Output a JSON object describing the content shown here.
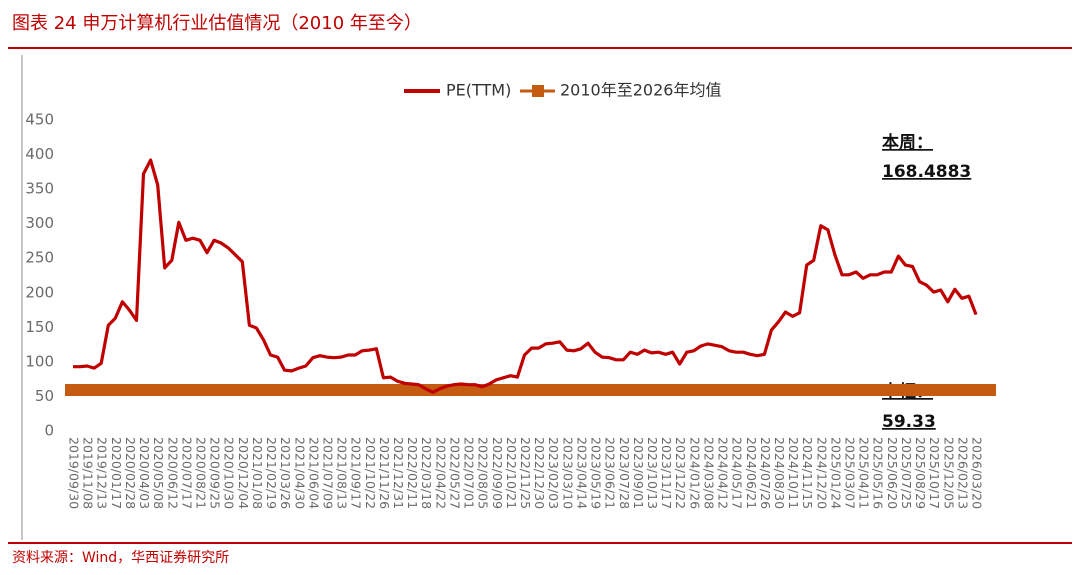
{
  "chart_data": {
    "type": "line",
    "title": "图表 24 申万计算机行业估值情况（2010 年至今）",
    "source": "资料来源：Wind，华西证券研究所",
    "categories": [
      "2019/09/30",
      null,
      "2019/11/08",
      null,
      "2019/12/13",
      null,
      "2020/01/17",
      null,
      "2020/02/28",
      null,
      "2020/04/03",
      null,
      "2020/05/08",
      null,
      "2020/06/12",
      null,
      "2020/07/17",
      null,
      "2020/08/21",
      null,
      "2020/09/25",
      null,
      "2020/10/30",
      null,
      "2020/12/04",
      null,
      "2021/01/08",
      null,
      "2021/02/19",
      null,
      "2021/03/26",
      null,
      "2021/04/30",
      null,
      "2021/06/04",
      null,
      "2021/07/09",
      null,
      "2021/08/13",
      null,
      "2021/09/17",
      null,
      "2021/10/22",
      null,
      "2021/11/26",
      null,
      "2021/12/31",
      null,
      "2022/02/11",
      null,
      "2022/03/18",
      null,
      "2022/04/22",
      null,
      "2022/05/27",
      null,
      "2022/07/01",
      null,
      "2022/08/05",
      null,
      "2022/09/09",
      null,
      "2022/10/21",
      null,
      "2022/11/25",
      null,
      "2022/12/30",
      null,
      "2023/02/03",
      null,
      "2023/03/10",
      null,
      "2023/04/14",
      null,
      "2023/05/19",
      null,
      "2023/06/21",
      null,
      "2023/07/28",
      null,
      "2023/09/01",
      null,
      "2023/10/13",
      null,
      "2023/11/17",
      null,
      "2023/12/22",
      null,
      "2024/01/26",
      null,
      "2024/03/08",
      null,
      "2024/04/12",
      null,
      "2024/05/17",
      null,
      "2024/06/21",
      null,
      "2024/07/26",
      null,
      "2024/08/30",
      null,
      "2024/10/11",
      null,
      "2024/11/15",
      null,
      "2024/12/20",
      null,
      "2025/01/24",
      null,
      "2025/03/07",
      null,
      "2025/04/11",
      null,
      "2025/05/16",
      null,
      "2025/06/20",
      null,
      "2025/07/25",
      null,
      "2025/08/29",
      null,
      "2025/10/17",
      null,
      "2025/12/05",
      null,
      "2026/02/13",
      null,
      "2026/03/20"
    ],
    "series": [
      {
        "name": "PE(TTM)",
        "color": "#c00000",
        "values": [
          93,
          93,
          94,
          91,
          98,
          153,
          163,
          187,
          175,
          160,
          372,
          392,
          356,
          236,
          247,
          302,
          276,
          279,
          276,
          258,
          276,
          272,
          265,
          255,
          245,
          153,
          149,
          132,
          110,
          107,
          88,
          87,
          91,
          94,
          106,
          109,
          107,
          106,
          107,
          110,
          110,
          116,
          117,
          119,
          77,
          78,
          72,
          69,
          68,
          67,
          61,
          56,
          61,
          65,
          67,
          68,
          67,
          67,
          64,
          68,
          74,
          77,
          80,
          78,
          110,
          120,
          120,
          126,
          127,
          129,
          117,
          116,
          119,
          127,
          114,
          107,
          106,
          103,
          103,
          114,
          111,
          117,
          113,
          114,
          111,
          114,
          97,
          114,
          116,
          123,
          126,
          124,
          122,
          116,
          114,
          114,
          111,
          109,
          111,
          146,
          158,
          172,
          166,
          171,
          240,
          247,
          297,
          291,
          255,
          226,
          226,
          230,
          221,
          226,
          226,
          230,
          230,
          253,
          240,
          238,
          216,
          211,
          201,
          204,
          187,
          205,
          192,
          195,
          168.4883
        ]
      }
    ],
    "mean_line": {
      "name": "2010年至2026年均值",
      "value": 59.33,
      "color": "#c55a11"
    },
    "annotations": {
      "current": "本周：",
      "center": "中枢："
    },
    "ylim": [
      0,
      450
    ],
    "yticks": [
      0,
      50,
      100,
      150,
      200,
      250,
      300,
      350,
      400,
      450
    ],
    "grid": false,
    "legend": "top"
  }
}
